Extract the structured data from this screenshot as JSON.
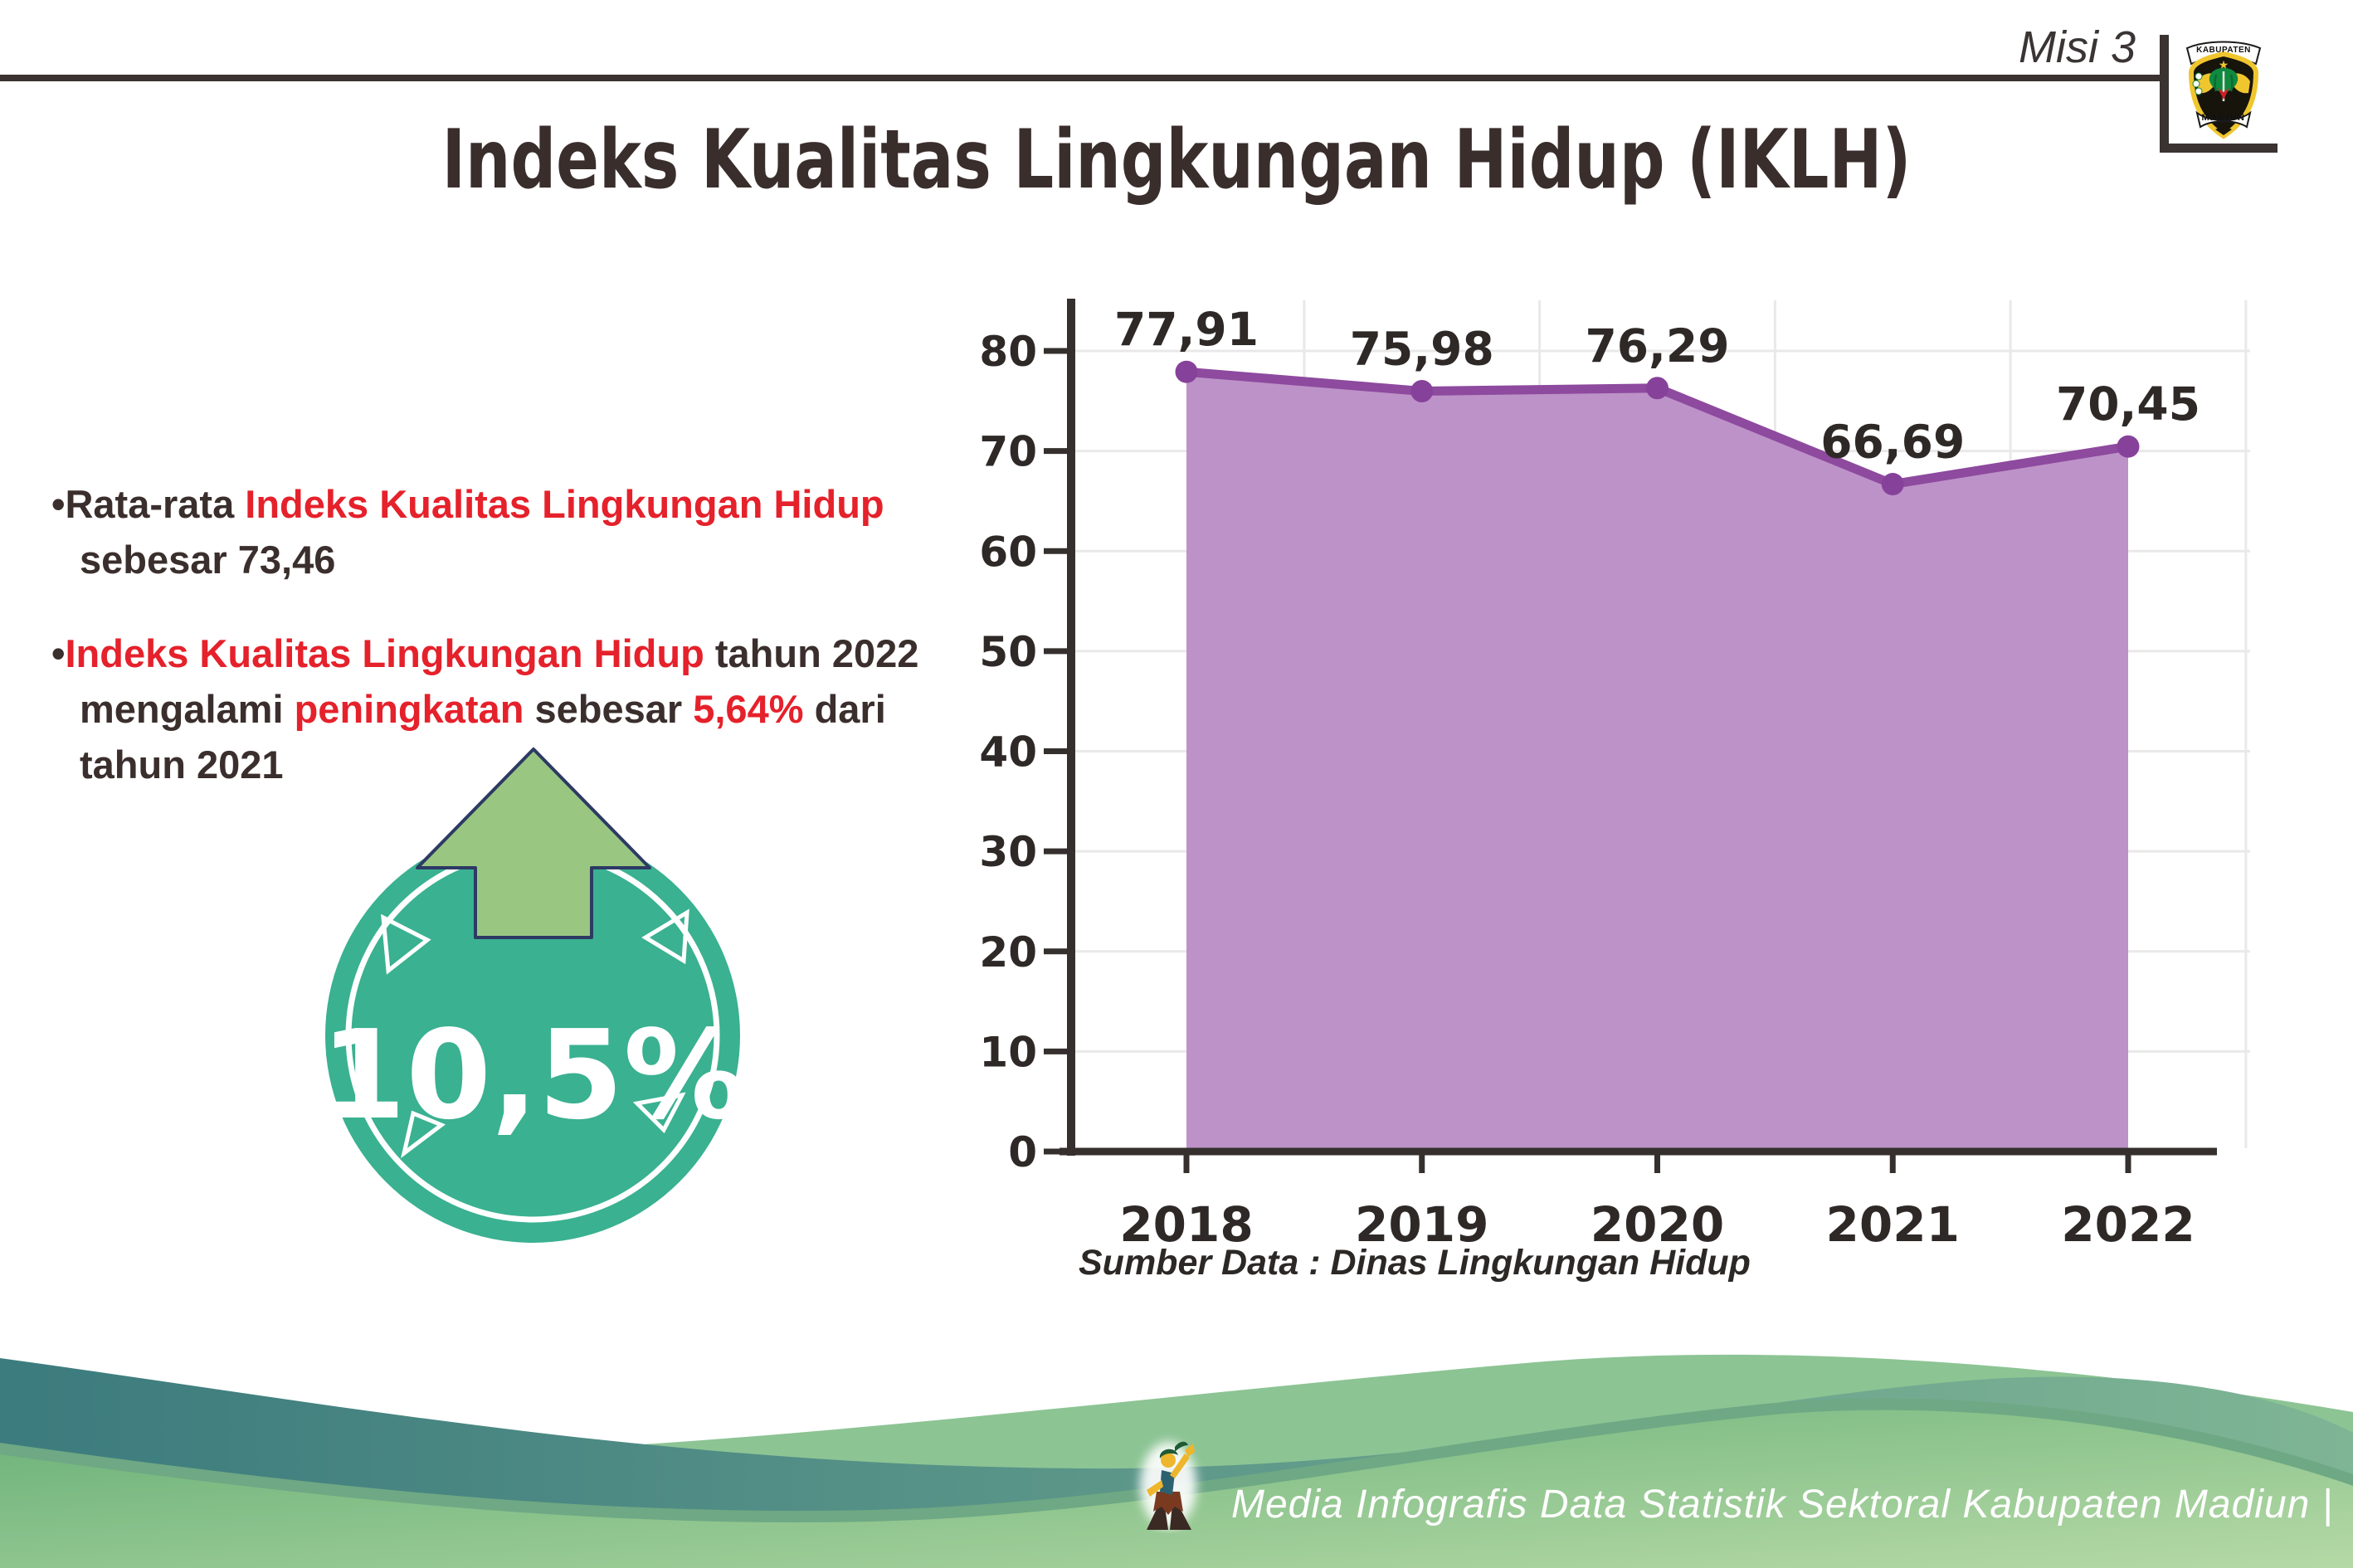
{
  "header": {
    "misi": "Misi 3",
    "title": "Indeks Kualitas Lingkungan Hidup (IKLH)",
    "logo_top": "KABUPATEN",
    "logo_bottom": "MADIUN"
  },
  "bullets": [
    {
      "lines": [
        [
          {
            "t": "•",
            "c": "dark"
          },
          {
            "t": "Rata-rata ",
            "c": "dark"
          },
          {
            "t": "Indeks Kualitas Lingkungan Hidup",
            "c": "red"
          }
        ],
        [
          {
            "t": "sebesar 73,46",
            "c": "dark"
          }
        ]
      ]
    },
    {
      "lines": [
        [
          {
            "t": "•",
            "c": "dark"
          },
          {
            "t": "Indeks Kualitas Lingkungan Hidup",
            "c": "red"
          },
          {
            "t": " tahun 2022",
            "c": "dark"
          }
        ],
        [
          {
            "t": "mengalami ",
            "c": "dark"
          },
          {
            "t": "peningkatan",
            "c": "red"
          },
          {
            "t": " sebesar ",
            "c": "dark"
          },
          {
            "t": "5,64%",
            "c": "red"
          },
          {
            "t": " dari",
            "c": "dark"
          }
        ],
        [
          {
            "t": "tahun 2021",
            "c": "dark"
          }
        ]
      ]
    }
  ],
  "badge": {
    "value": "10,5%",
    "circle_color": "#3ab191",
    "ring_color": "#ffffff",
    "arrow_color": "#99c782",
    "arrow_outline": "#2d3a63"
  },
  "chart_data": {
    "type": "area",
    "categories": [
      "2018",
      "2019",
      "2020",
      "2021",
      "2022"
    ],
    "values": [
      77.91,
      75.98,
      76.29,
      66.69,
      70.45
    ],
    "value_labels": [
      "77,91",
      "75,98",
      "76,29",
      "66,69",
      "70,45"
    ],
    "ylim": [
      0,
      80
    ],
    "ytick_step": 10,
    "grid": true,
    "legend": "none",
    "line_color": "#8d4a9e",
    "dot_color": "#86429a",
    "fill_color": "#bd92c8",
    "axis_color": "#35302e",
    "grid_color": "#eae8e8"
  },
  "source_note": "Sumber Data : Dinas Lingkungan Hidup",
  "footer": {
    "text": "Media Infografis Data Statistik Sektoral Kabupaten Madiun |"
  }
}
